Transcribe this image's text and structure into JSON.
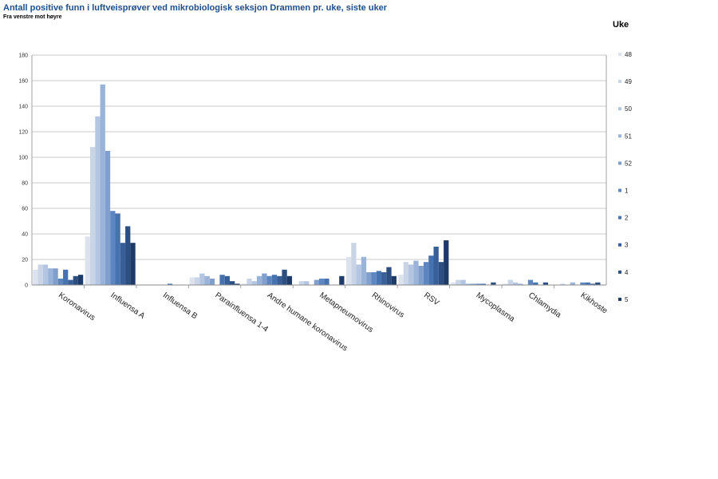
{
  "chart_data": {
    "type": "bar",
    "title": "Antall positive funn i luftveisprøver ved mikrobiologisk seksjon Drammen pr. uke, siste uker",
    "subtitle": "Fra venstre mot høyre",
    "xlabel": "",
    "ylabel": "",
    "ylim": [
      0,
      180
    ],
    "yticks": [
      0,
      20,
      40,
      60,
      80,
      100,
      120,
      140,
      160,
      180
    ],
    "grid": true,
    "legend_title": "Uke",
    "legend_position": "right",
    "categories": [
      "Koronavirus",
      "Influensa A",
      "Influensa B",
      "Parainfluensa 1-4",
      "Andre humane koronavirus",
      "Metapneumovirus",
      "Rhinovirus",
      "RSV",
      "Mycoplasma",
      "Chlamydia",
      "Kikhoste"
    ],
    "series": [
      {
        "name": "48",
        "color": "#dce3ef",
        "values": [
          12,
          38,
          0,
          6,
          1,
          0,
          22,
          8,
          2,
          1,
          0
        ]
      },
      {
        "name": "49",
        "color": "#c9d4e7",
        "values": [
          16,
          108,
          0,
          6,
          5,
          3,
          33,
          18,
          4,
          4,
          1
        ]
      },
      {
        "name": "50",
        "color": "#b3c5e0",
        "values": [
          16,
          132,
          0,
          9,
          3,
          3,
          16,
          16,
          4,
          2,
          0
        ]
      },
      {
        "name": "51",
        "color": "#9ab3d8",
        "values": [
          13,
          157,
          0,
          7,
          7,
          0,
          22,
          19,
          1,
          1,
          2
        ]
      },
      {
        "name": "52",
        "color": "#809fcc",
        "values": [
          13,
          105,
          0,
          5,
          9,
          4,
          10,
          15,
          1,
          0,
          0
        ]
      },
      {
        "name": "1",
        "color": "#5d86c0",
        "values": [
          5,
          58,
          0,
          0,
          7,
          5,
          10,
          18,
          1,
          4,
          2
        ]
      },
      {
        "name": "2",
        "color": "#4673b0",
        "values": [
          12,
          56,
          1,
          8,
          8,
          5,
          11,
          23,
          1,
          2,
          2
        ]
      },
      {
        "name": "3",
        "color": "#385f98",
        "values": [
          4,
          33,
          0,
          7,
          7,
          0,
          10,
          30,
          0,
          0,
          1
        ]
      },
      {
        "name": "4",
        "color": "#2c4e80",
        "values": [
          7,
          46,
          0,
          3,
          12,
          0,
          14,
          18,
          2,
          2,
          2
        ]
      },
      {
        "name": "5",
        "color": "#1e3a66",
        "values": [
          8,
          33,
          0,
          1,
          7,
          7,
          7,
          35,
          0,
          0,
          0
        ]
      }
    ]
  }
}
